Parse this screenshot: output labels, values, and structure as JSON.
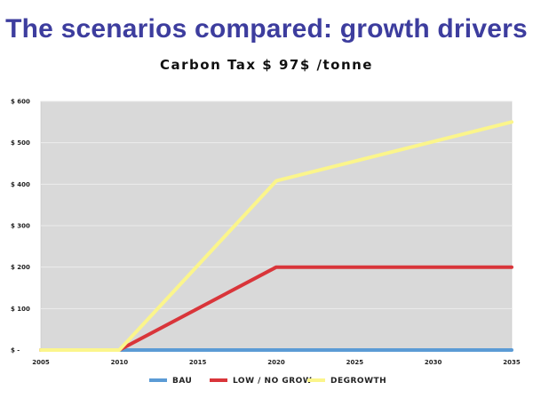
{
  "slide_title": "The scenarios compared: growth drivers",
  "chart_data": {
    "type": "line",
    "title": "Carbon Tax $ 97$ /tonne",
    "x": [
      2005,
      2010,
      2015,
      2020,
      2025,
      2030,
      2035
    ],
    "x_tick_labels": [
      "2005",
      "2010",
      "2015",
      "2020",
      "2025",
      "2030",
      "2035"
    ],
    "y_tick_labels": [
      "$ -",
      "$ 100",
      "$ 200",
      "$ 300",
      "$ 400",
      "$ 500",
      "$ 600"
    ],
    "ylim": [
      0,
      600
    ],
    "xlim": [
      2005,
      2035
    ],
    "grid": true,
    "legend_position": "bottom",
    "plot_background": "#d9d9d9",
    "series": [
      {
        "name": "BAU",
        "color": "#5b9bd5",
        "points": [
          [
            2005,
            0
          ],
          [
            2010,
            0
          ],
          [
            2035,
            0
          ]
        ]
      },
      {
        "name": "LOW / NO GROW",
        "color": "#d9353a",
        "points": [
          [
            2005,
            0
          ],
          [
            2010,
            0
          ],
          [
            2020,
            200
          ],
          [
            2035,
            200
          ]
        ]
      },
      {
        "name": "DEGROWTH",
        "color": "#fbf58b",
        "points": [
          [
            2005,
            0
          ],
          [
            2010,
            0
          ],
          [
            2020,
            408
          ],
          [
            2035,
            550
          ]
        ]
      }
    ]
  }
}
